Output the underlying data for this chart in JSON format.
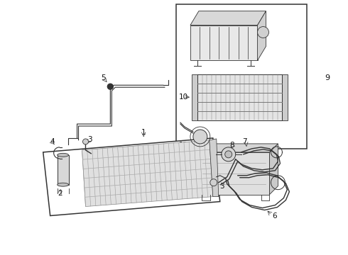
{
  "bg_color": "#ffffff",
  "lc": "#333333",
  "lc_light": "#666666",
  "label_color": "#111111",
  "figsize": [
    4.9,
    3.6
  ],
  "dpi": 100
}
